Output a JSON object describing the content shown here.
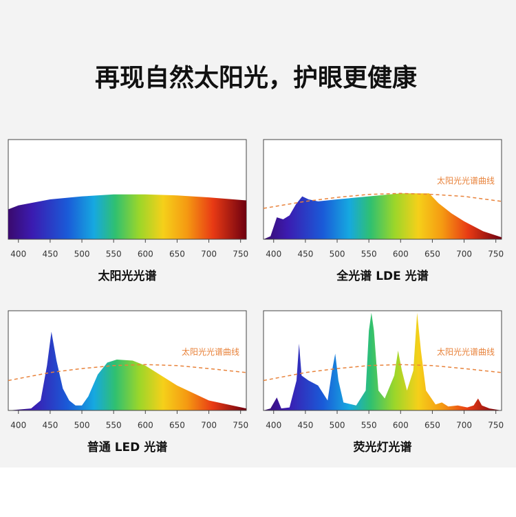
{
  "title": "再现自然太阳光，护眼更健康",
  "chart_data": [
    {
      "type": "area",
      "title": "太阳光光谱",
      "xlim": [
        384,
        759
      ],
      "xticks": [
        400,
        450,
        500,
        550,
        600,
        650,
        700,
        750
      ],
      "ylim": [
        0,
        100
      ],
      "series": [
        {
          "x": [
            384,
            400,
            450,
            500,
            550,
            600,
            650,
            700,
            759
          ],
          "values": [
            30,
            34,
            40,
            43,
            45,
            45,
            44,
            42,
            39
          ]
        }
      ]
    },
    {
      "type": "area",
      "title": "全光谱 LDE 光谱",
      "xlim": [
        384,
        759
      ],
      "xticks": [
        400,
        450,
        500,
        550,
        600,
        650,
        700,
        750
      ],
      "ylim": [
        0,
        100
      ],
      "series": [
        {
          "x": [
            384,
            395,
            405,
            415,
            425,
            435,
            445,
            455,
            470,
            500,
            550,
            600,
            645,
            660,
            680,
            700,
            730,
            759
          ],
          "values": [
            0,
            3,
            22,
            20,
            24,
            35,
            43,
            40,
            38,
            40,
            43,
            46,
            46,
            36,
            26,
            18,
            8,
            2
          ]
        },
        {
          "name": "太阳光光谱曲线",
          "color": "#e8823a",
          "dashed": true,
          "x": [
            384,
            450,
            500,
            550,
            600,
            650,
            700,
            759
          ],
          "values": [
            31,
            38,
            42,
            45,
            46,
            45,
            43,
            38
          ]
        }
      ]
    },
    {
      "type": "area",
      "title": "普通 LED 光谱",
      "xlim": [
        384,
        759
      ],
      "xticks": [
        400,
        450,
        500,
        550,
        600,
        650,
        700,
        750
      ],
      "ylim": [
        0,
        100
      ],
      "series": [
        {
          "x": [
            384,
            420,
            435,
            445,
            452,
            460,
            470,
            480,
            490,
            500,
            510,
            525,
            540,
            555,
            580,
            600,
            625,
            650,
            700,
            759
          ],
          "values": [
            0,
            2,
            10,
            45,
            79,
            50,
            22,
            10,
            5,
            5,
            14,
            36,
            48,
            51,
            50,
            45,
            35,
            25,
            10,
            2
          ]
        },
        {
          "name": "太阳光光谱曲线",
          "color": "#e8823a",
          "dashed": true,
          "x": [
            384,
            450,
            500,
            550,
            600,
            650,
            700,
            759
          ],
          "values": [
            30,
            38,
            42,
            45,
            46,
            45,
            42,
            38
          ]
        }
      ]
    },
    {
      "type": "area",
      "title": "荧光灯光谱",
      "xlim": [
        384,
        759
      ],
      "xticks": [
        400,
        450,
        500,
        550,
        600,
        650,
        700,
        750
      ],
      "ylim": [
        0,
        100
      ],
      "series": [
        {
          "x": [
            384,
            395,
            405,
            412,
            425,
            436,
            440,
            444,
            455,
            470,
            485,
            492,
            497,
            502,
            510,
            530,
            545,
            550,
            554,
            558,
            565,
            575,
            590,
            596,
            602,
            610,
            620,
            626,
            632,
            640,
            655,
            665,
            675,
            690,
            705,
            715,
            722,
            728,
            740,
            759
          ],
          "values": [
            0,
            2,
            13,
            2,
            3,
            30,
            67,
            35,
            30,
            25,
            10,
            40,
            57,
            30,
            8,
            5,
            20,
            80,
            98,
            80,
            20,
            12,
            35,
            60,
            40,
            20,
            40,
            98,
            60,
            20,
            6,
            8,
            4,
            5,
            3,
            5,
            12,
            5,
            2,
            0
          ]
        },
        {
          "name": "太阳光光谱曲线",
          "color": "#e8823a",
          "dashed": true,
          "x": [
            384,
            450,
            500,
            550,
            600,
            650,
            700,
            759
          ],
          "values": [
            30,
            38,
            42,
            45,
            46,
            45,
            42,
            38
          ]
        }
      ]
    }
  ]
}
